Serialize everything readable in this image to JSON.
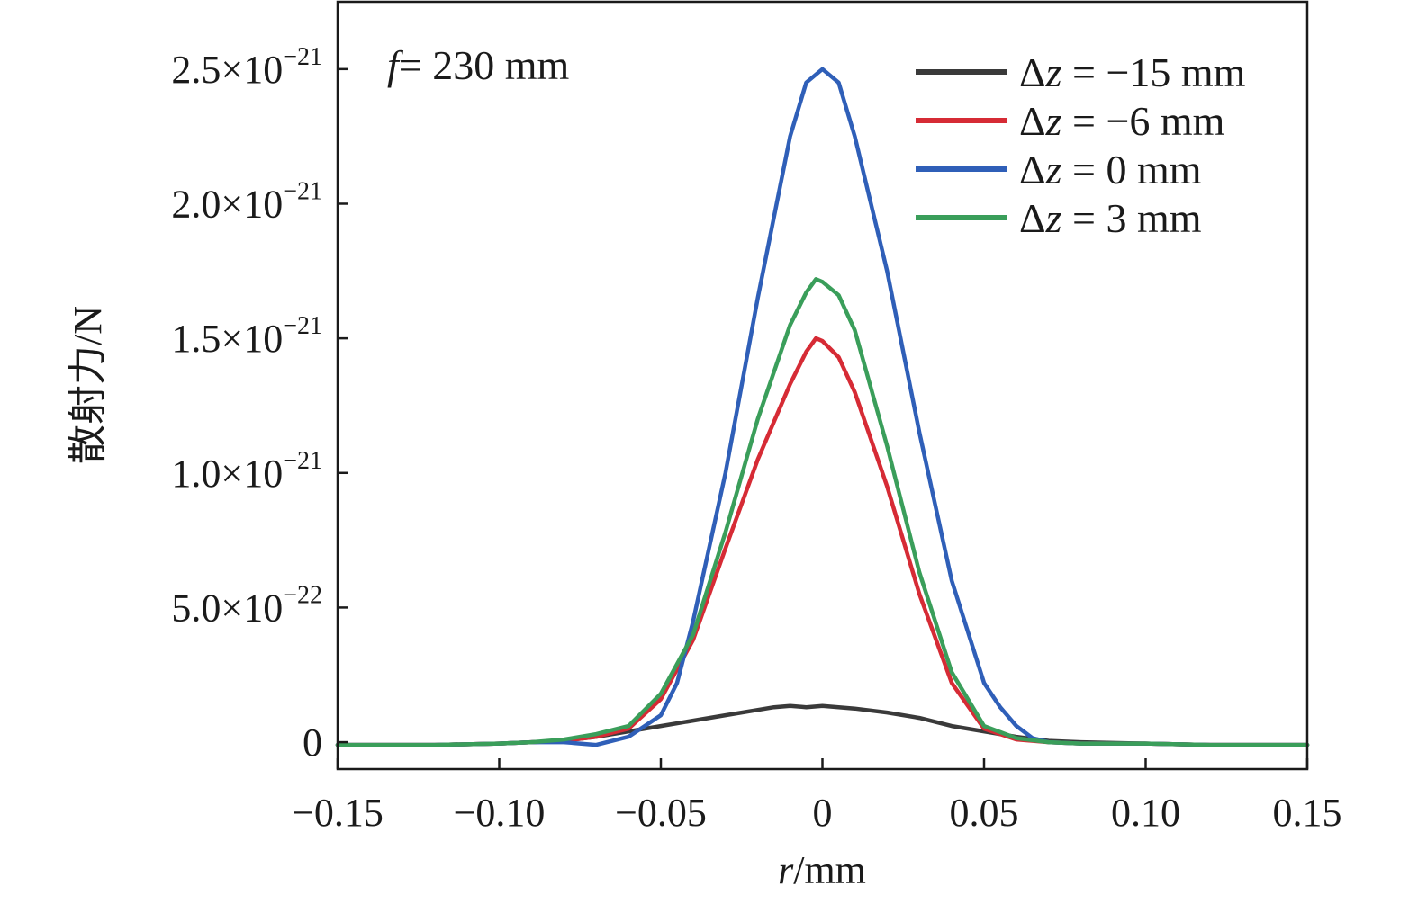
{
  "chart_data": {
    "type": "line",
    "annotation": {
      "italic": "f",
      "rest": "= 230 mm"
    },
    "xlabel": {
      "italic": "r",
      "rest": "/mm"
    },
    "ylabel": "散射力/N",
    "xlim": [
      -0.15,
      0.15
    ],
    "ylim": [
      -1e-22,
      2.75e-21
    ],
    "x_ticks": [
      {
        "value": -0.15,
        "label": "−0.15"
      },
      {
        "value": -0.1,
        "label": "−0.10"
      },
      {
        "value": -0.05,
        "label": "−0.05"
      },
      {
        "value": 0,
        "label": "0"
      },
      {
        "value": 0.05,
        "label": "0.05"
      },
      {
        "value": 0.1,
        "label": "0.10"
      },
      {
        "value": 0.15,
        "label": "0.15"
      }
    ],
    "y_ticks": [
      {
        "value": 0,
        "mantissa": "0",
        "exponent": ""
      },
      {
        "value": 5e-22,
        "mantissa": "5.0×10",
        "exponent": "−22"
      },
      {
        "value": 1e-21,
        "mantissa": "1.0×10",
        "exponent": "−21"
      },
      {
        "value": 1.5e-21,
        "mantissa": "1.5×10",
        "exponent": "−21"
      },
      {
        "value": 2e-21,
        "mantissa": "2.0×10",
        "exponent": "−21"
      },
      {
        "value": 2.5e-21,
        "mantissa": "2.5×10",
        "exponent": "−21"
      }
    ],
    "legend_position": "top-right",
    "series": [
      {
        "name": {
          "delta": "Δ",
          "italic": "z",
          "rest": " = −15 mm"
        },
        "color": "#3a3a3a",
        "x": [
          -0.15,
          -0.12,
          -0.1,
          -0.09,
          -0.08,
          -0.07,
          -0.06,
          -0.05,
          -0.04,
          -0.03,
          -0.02,
          -0.015,
          -0.01,
          -0.005,
          0,
          0.005,
          0.01,
          0.02,
          0.03,
          0.04,
          0.05,
          0.06,
          0.07,
          0.08,
          0.1,
          0.12,
          0.15
        ],
        "y": [
          -1e-23,
          -1e-23,
          -5e-24,
          0,
          5e-24,
          2e-23,
          4e-23,
          6e-23,
          8e-23,
          1e-22,
          1.2e-22,
          1.3e-22,
          1.35e-22,
          1.3e-22,
          1.35e-22,
          1.3e-22,
          1.25e-22,
          1.1e-22,
          9e-23,
          6e-23,
          4e-23,
          2e-23,
          5e-24,
          0,
          -5e-24,
          -1e-23,
          -1e-23
        ]
      },
      {
        "name": {
          "delta": "Δ",
          "italic": "z",
          "rest": " = −6 mm"
        },
        "color": "#d62b35",
        "x": [
          -0.15,
          -0.12,
          -0.1,
          -0.09,
          -0.08,
          -0.07,
          -0.06,
          -0.05,
          -0.04,
          -0.03,
          -0.02,
          -0.01,
          -0.005,
          -0.002,
          0,
          0.005,
          0.01,
          0.02,
          0.03,
          0.04,
          0.05,
          0.06,
          0.07,
          0.08,
          0.1,
          0.12,
          0.15
        ],
        "y": [
          -1e-23,
          -1e-23,
          -5e-24,
          0,
          5e-24,
          2e-23,
          5e-23,
          1.6e-22,
          3.8e-22,
          7.2e-22,
          1.05e-21,
          1.33e-21,
          1.45e-21,
          1.5e-21,
          1.49e-21,
          1.43e-21,
          1.3e-21,
          9.5e-22,
          5.5e-22,
          2.2e-22,
          5e-23,
          1e-23,
          0,
          -5e-24,
          -5e-24,
          -1e-23,
          -1e-23
        ]
      },
      {
        "name": {
          "delta": "Δ",
          "italic": "z",
          "rest": " = 0 mm"
        },
        "color": "#2f5fb8",
        "x": [
          -0.15,
          -0.12,
          -0.1,
          -0.09,
          -0.08,
          -0.07,
          -0.06,
          -0.05,
          -0.045,
          -0.04,
          -0.03,
          -0.02,
          -0.01,
          -0.005,
          0,
          0.005,
          0.01,
          0.02,
          0.03,
          0.04,
          0.05,
          0.055,
          0.06,
          0.065,
          0.07,
          0.08,
          0.1,
          0.12,
          0.15
        ],
        "y": [
          -1e-23,
          -1e-23,
          -5e-24,
          0,
          0,
          -1e-23,
          2e-23,
          1e-22,
          2.2e-22,
          4.5e-22,
          1e-21,
          1.65e-21,
          2.25e-21,
          2.45e-21,
          2.5e-21,
          2.45e-21,
          2.25e-21,
          1.75e-21,
          1.15e-21,
          6e-22,
          2.2e-22,
          1.3e-22,
          6e-23,
          1.5e-23,
          0,
          -5e-24,
          -5e-24,
          -1e-23,
          -1e-23
        ]
      },
      {
        "name": {
          "delta": "Δ",
          "italic": "z",
          "rest": " = 3 mm"
        },
        "color": "#3a9e5a",
        "x": [
          -0.15,
          -0.12,
          -0.1,
          -0.09,
          -0.08,
          -0.07,
          -0.06,
          -0.05,
          -0.04,
          -0.03,
          -0.02,
          -0.01,
          -0.005,
          -0.002,
          0,
          0.005,
          0.01,
          0.02,
          0.03,
          0.04,
          0.05,
          0.06,
          0.07,
          0.08,
          0.1,
          0.12,
          0.15
        ],
        "y": [
          -1e-23,
          -1e-23,
          -5e-24,
          0,
          1e-23,
          3e-23,
          6e-23,
          1.8e-22,
          4e-22,
          7.8e-22,
          1.2e-21,
          1.55e-21,
          1.67e-21,
          1.72e-21,
          1.71e-21,
          1.66e-21,
          1.53e-21,
          1.1e-21,
          6.3e-22,
          2.6e-22,
          6e-23,
          1.5e-23,
          0,
          -5e-24,
          -5e-24,
          -1e-23,
          -1e-23
        ]
      }
    ]
  }
}
